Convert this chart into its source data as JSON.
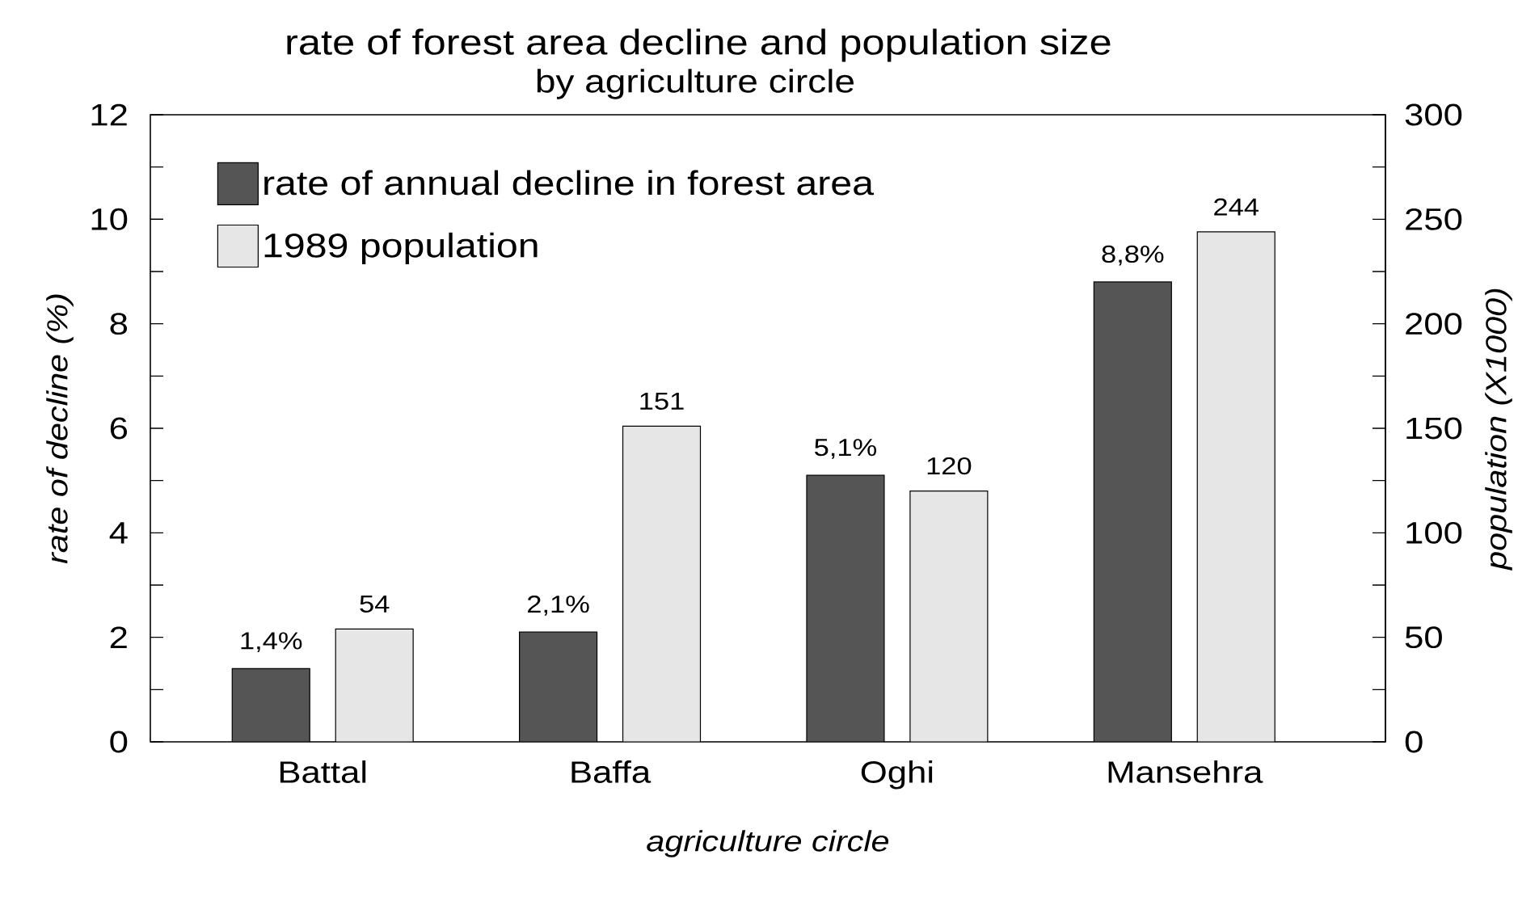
{
  "chart_data": {
    "type": "bar",
    "title": "rate of forest area decline and population size",
    "subtitle": "by agriculture circle",
    "xlabel": "agriculture circle",
    "ylabel": "rate of decline (%)",
    "y2label": "population (X1000)",
    "categories": [
      "Battal",
      "Baffa",
      "Oghi",
      "Mansehra"
    ],
    "series": [
      {
        "name": "rate of annual decline in forest area",
        "color": "#555555",
        "values": [
          1.4,
          2.1,
          5.1,
          8.8
        ],
        "value_labels": [
          "1,4%",
          "2,1%",
          "5,1%",
          "8,8%"
        ]
      },
      {
        "name": "1989 population",
        "color": "#e6e6e6",
        "values": [
          54,
          151,
          120,
          244
        ],
        "axis": "y2",
        "value_labels": [
          "54",
          "151",
          "120",
          "244"
        ]
      }
    ],
    "ylim": [
      0,
      12
    ],
    "yticks": [
      0,
      {
        "value": 1,
        "label": null
      },
      2,
      {
        "value": 3,
        "label": null
      },
      4,
      {
        "value": 5,
        "label": null
      },
      6,
      {
        "value": 7,
        "label": null
      },
      8,
      {
        "value": 9,
        "label": null
      },
      10,
      {
        "value": 11,
        "label": null
      },
      12
    ],
    "y2lim": [
      0,
      300
    ],
    "y2ticks": [
      0,
      {
        "value": 25,
        "label": null
      },
      50,
      {
        "value": 75,
        "label": null
      },
      100,
      {
        "value": 125,
        "label": null
      },
      150,
      {
        "value": 175,
        "label": null
      },
      200,
      {
        "value": 225,
        "label": null
      },
      250,
      {
        "value": 275,
        "label": null
      },
      300
    ],
    "legend": "top left"
  }
}
